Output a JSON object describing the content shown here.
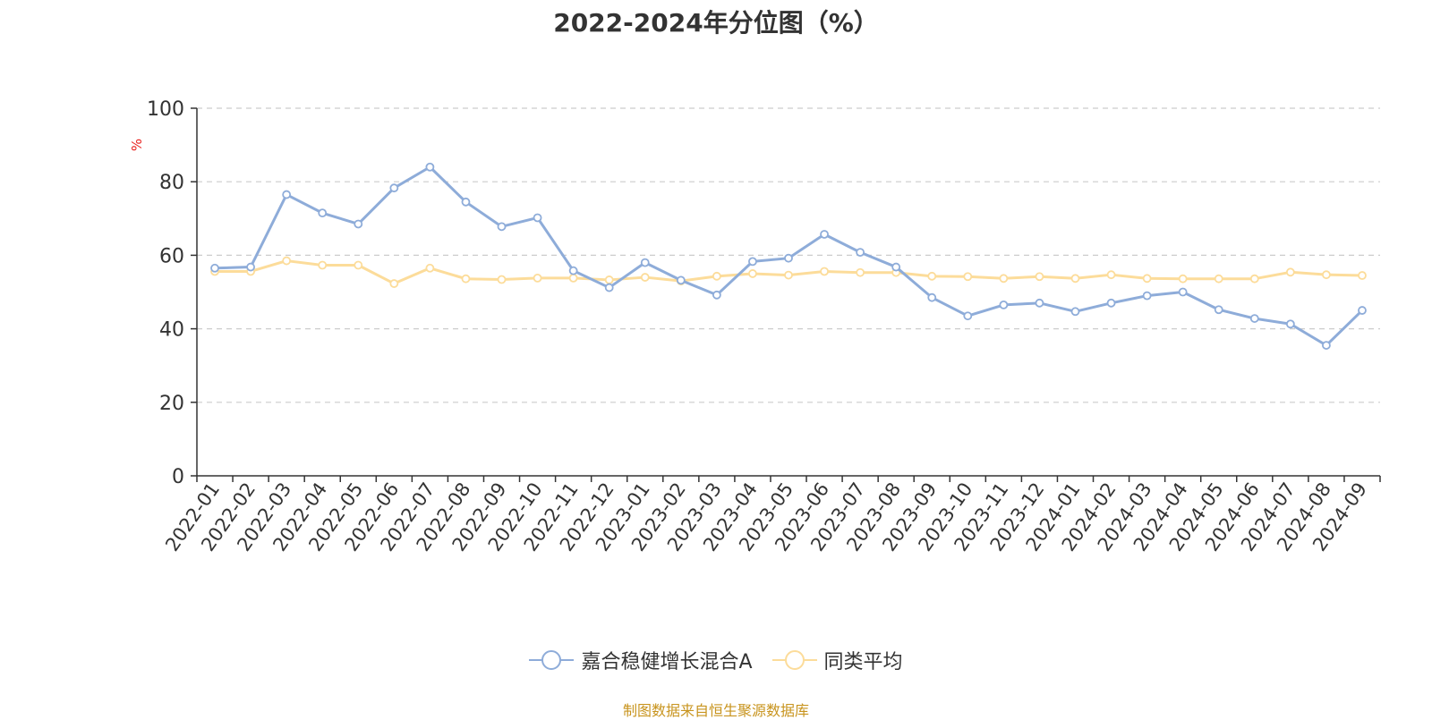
{
  "chart_data": {
    "type": "line",
    "title": "2022-2024年分位图（%）",
    "ylabel": "%",
    "xlabel": "",
    "ylim": [
      0,
      100
    ],
    "yticks": [
      0,
      20,
      40,
      60,
      80,
      100
    ],
    "grid": "horizontal dashed",
    "legend_position": "bottom",
    "categories": [
      "2022-01",
      "2022-02",
      "2022-03",
      "2022-04",
      "2022-05",
      "2022-06",
      "2022-07",
      "2022-08",
      "2022-09",
      "2022-10",
      "2022-11",
      "2022-12",
      "2023-01",
      "2023-02",
      "2023-03",
      "2023-04",
      "2023-05",
      "2023-06",
      "2023-07",
      "2023-08",
      "2023-09",
      "2023-10",
      "2023-11",
      "2023-12",
      "2024-01",
      "2024-02",
      "2024-03",
      "2024-04",
      "2024-05",
      "2024-06",
      "2024-07",
      "2024-08",
      "2024-09"
    ],
    "series": [
      {
        "name": "嘉合稳健增长混合A",
        "color": "#8eacd9",
        "values": [
          56.5,
          56.8,
          76.5,
          71.5,
          68.5,
          78.3,
          84.0,
          74.5,
          67.8,
          70.2,
          55.8,
          51.2,
          58.0,
          53.2,
          49.2,
          58.3,
          59.2,
          65.7,
          60.8,
          56.8,
          48.5,
          43.5,
          46.5,
          47.0,
          44.7,
          47.0,
          49.0,
          50.0,
          45.2,
          42.8,
          41.3,
          35.5,
          45.0
        ]
      },
      {
        "name": "同类平均",
        "color": "#fcdc9a",
        "values": [
          55.6,
          55.6,
          58.5,
          57.3,
          57.3,
          52.3,
          56.5,
          53.6,
          53.4,
          53.8,
          53.8,
          53.3,
          54.0,
          53.0,
          54.3,
          55.0,
          54.6,
          55.6,
          55.3,
          55.3,
          54.3,
          54.2,
          53.7,
          54.2,
          53.7,
          54.7,
          53.7,
          53.6,
          53.6,
          53.6,
          55.4,
          54.7,
          54.5
        ]
      }
    ]
  },
  "source_text": "制图数据来自恒生聚源数据库"
}
